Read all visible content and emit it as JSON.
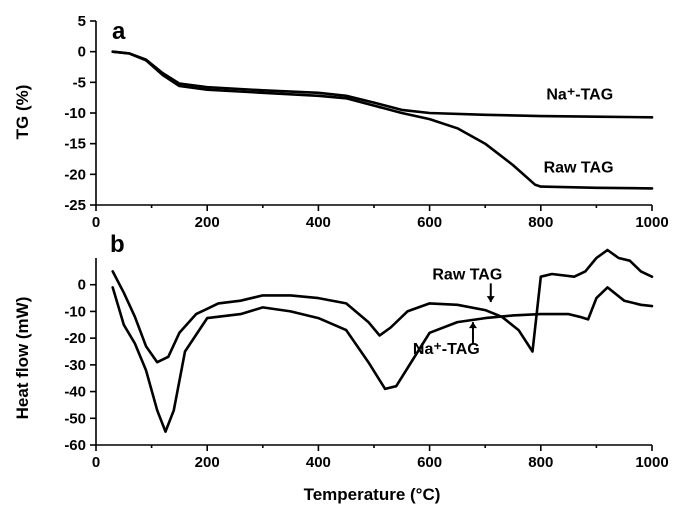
{
  "chart_data": [
    {
      "type": "line",
      "panel_label": "a",
      "ylabel": "TG (%)",
      "xlabel": "",
      "xlim": [
        0,
        1000
      ],
      "ylim": [
        -25,
        5
      ],
      "x_ticks": [
        0,
        200,
        400,
        600,
        800,
        1000
      ],
      "y_ticks": [
        5,
        0,
        -5,
        -10,
        -15,
        -20,
        -25
      ],
      "series": [
        {
          "name": "Na⁺-TAG",
          "points": [
            [
              30,
              0
            ],
            [
              60,
              -0.3
            ],
            [
              90,
              -1.3
            ],
            [
              120,
              -3.5
            ],
            [
              150,
              -5.2
            ],
            [
              200,
              -5.8
            ],
            [
              300,
              -6.3
            ],
            [
              400,
              -6.7
            ],
            [
              450,
              -7.2
            ],
            [
              500,
              -8.3
            ],
            [
              550,
              -9.5
            ],
            [
              600,
              -10.0
            ],
            [
              700,
              -10.3
            ],
            [
              800,
              -10.5
            ],
            [
              900,
              -10.6
            ],
            [
              1000,
              -10.7
            ]
          ]
        },
        {
          "name": "Raw TAG",
          "points": [
            [
              30,
              0
            ],
            [
              60,
              -0.3
            ],
            [
              90,
              -1.4
            ],
            [
              120,
              -3.8
            ],
            [
              150,
              -5.6
            ],
            [
              200,
              -6.2
            ],
            [
              300,
              -6.7
            ],
            [
              400,
              -7.2
            ],
            [
              450,
              -7.6
            ],
            [
              500,
              -8.8
            ],
            [
              550,
              -10.0
            ],
            [
              600,
              -11.0
            ],
            [
              650,
              -12.5
            ],
            [
              700,
              -15.0
            ],
            [
              750,
              -18.5
            ],
            [
              790,
              -21.7
            ],
            [
              800,
              -22.0
            ],
            [
              900,
              -22.2
            ],
            [
              1000,
              -22.3
            ]
          ]
        }
      ],
      "annotations": [
        {
          "text": "Na⁺-TAG",
          "x": 810,
          "y": -7.8
        },
        {
          "text": "Raw TAG",
          "x": 805,
          "y": -19.7
        }
      ]
    },
    {
      "type": "line",
      "panel_label": "b",
      "ylabel": "Heat flow (mW)",
      "xlabel": "Temperature (°C)",
      "xlim": [
        0,
        1000
      ],
      "ylim": [
        -60,
        10
      ],
      "x_ticks": [
        0,
        200,
        400,
        600,
        800,
        1000
      ],
      "y_ticks": [
        0,
        -10,
        -20,
        -30,
        -40,
        -50,
        -60
      ],
      "series": [
        {
          "name": "Raw TAG",
          "points": [
            [
              30,
              5
            ],
            [
              50,
              -3
            ],
            [
              70,
              -12
            ],
            [
              90,
              -23
            ],
            [
              110,
              -29
            ],
            [
              130,
              -27
            ],
            [
              150,
              -18
            ],
            [
              180,
              -11
            ],
            [
              200,
              -9
            ],
            [
              220,
              -7
            ],
            [
              260,
              -6
            ],
            [
              300,
              -4
            ],
            [
              350,
              -4
            ],
            [
              400,
              -5
            ],
            [
              450,
              -7
            ],
            [
              490,
              -14
            ],
            [
              510,
              -19
            ],
            [
              530,
              -16
            ],
            [
              560,
              -10
            ],
            [
              600,
              -7
            ],
            [
              650,
              -7.5
            ],
            [
              700,
              -9.5
            ],
            [
              730,
              -12
            ],
            [
              760,
              -17
            ],
            [
              785,
              -25
            ],
            [
              800,
              3
            ],
            [
              820,
              4
            ],
            [
              860,
              3
            ],
            [
              880,
              5
            ],
            [
              900,
              10
            ],
            [
              920,
              13
            ],
            [
              940,
              10
            ],
            [
              960,
              9
            ],
            [
              980,
              5
            ],
            [
              1000,
              3
            ]
          ]
        },
        {
          "name": "Na⁺-TAG",
          "points": [
            [
              30,
              -1
            ],
            [
              50,
              -15
            ],
            [
              70,
              -22
            ],
            [
              90,
              -32
            ],
            [
              110,
              -47
            ],
            [
              125,
              -55
            ],
            [
              140,
              -47
            ],
            [
              160,
              -25
            ],
            [
              200,
              -12.5
            ],
            [
              260,
              -11
            ],
            [
              300,
              -8.5
            ],
            [
              350,
              -10
            ],
            [
              400,
              -12.5
            ],
            [
              450,
              -17
            ],
            [
              490,
              -29
            ],
            [
              520,
              -39
            ],
            [
              540,
              -38
            ],
            [
              570,
              -28
            ],
            [
              600,
              -18
            ],
            [
              650,
              -14
            ],
            [
              700,
              -12.5
            ],
            [
              750,
              -11.5
            ],
            [
              800,
              -11
            ],
            [
              850,
              -11
            ],
            [
              870,
              -12
            ],
            [
              885,
              -13
            ],
            [
              900,
              -5
            ],
            [
              920,
              -1
            ],
            [
              950,
              -6
            ],
            [
              980,
              -7.5
            ],
            [
              1000,
              -8
            ]
          ]
        }
      ],
      "annotations": [
        {
          "text": "Raw TAG",
          "x": 605,
          "y": 2
        },
        {
          "text": "Na⁺-TAG",
          "x": 570,
          "y": -26
        }
      ]
    }
  ]
}
